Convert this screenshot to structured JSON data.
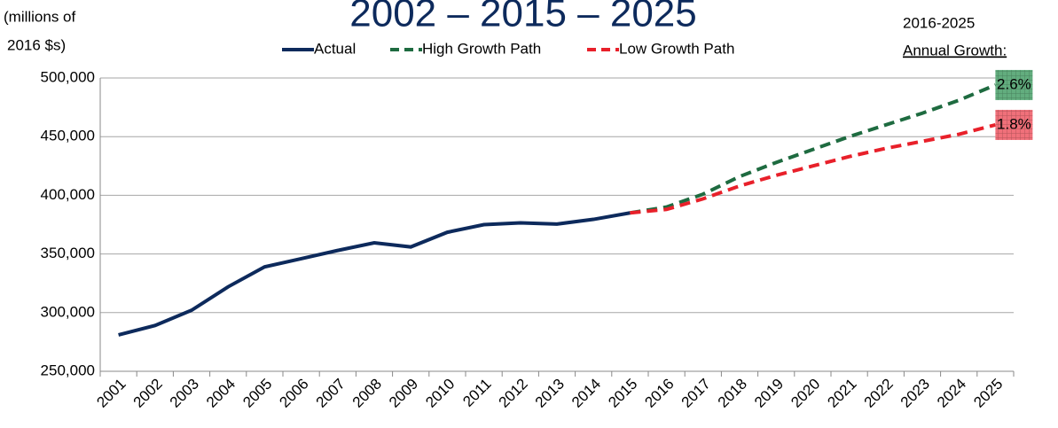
{
  "chart_data": {
    "type": "line",
    "title": "2002 – 2015 – 2025",
    "ylabel": [
      "(millions of",
      "2016 $s)"
    ],
    "annotation": [
      "2016-2025",
      "Annual Growth:"
    ],
    "categories": [
      "2001",
      "2002",
      "2003",
      "2004",
      "2005",
      "2006",
      "2007",
      "2008",
      "2009",
      "2010",
      "2011",
      "2012",
      "2013",
      "2014",
      "2015",
      "2016",
      "2017",
      "2018",
      "2019",
      "2020",
      "2021",
      "2022",
      "2023",
      "2024",
      "2025"
    ],
    "ylim": [
      250000,
      500000
    ],
    "yticks": [
      {
        "value": 250000,
        "label": "250,000"
      },
      {
        "value": 300000,
        "label": "300,000"
      },
      {
        "value": 350000,
        "label": "350,000"
      },
      {
        "value": 400000,
        "label": "400,000"
      },
      {
        "value": 450000,
        "label": "450,000"
      },
      {
        "value": 500000,
        "label": "500,000"
      }
    ],
    "grid": true,
    "series": [
      {
        "name": "Actual",
        "color": "#0d2a5c",
        "dash": false,
        "values": [
          281000,
          289000,
          302000,
          322000,
          339000,
          346000,
          353000,
          359500,
          356000,
          368500,
          375000,
          376500,
          375500,
          379500,
          385000,
          null,
          null,
          null,
          null,
          null,
          null,
          null,
          null,
          null,
          null
        ]
      },
      {
        "name": "High Growth Path",
        "color": "#1e6b40",
        "dash": true,
        "growth": "2.6%",
        "growth_color": "#62ad7e",
        "values": [
          null,
          null,
          null,
          null,
          null,
          null,
          null,
          null,
          null,
          null,
          null,
          null,
          null,
          null,
          385000,
          390000,
          401000,
          416000,
          428000,
          439000,
          450000,
          460000,
          470000,
          481000,
          494000
        ]
      },
      {
        "name": "Low Growth Path",
        "color": "#e8202a",
        "dash": true,
        "growth": "1.8%",
        "growth_color": "#f0707a",
        "values": [
          null,
          null,
          null,
          null,
          null,
          null,
          null,
          null,
          null,
          null,
          null,
          null,
          null,
          null,
          385000,
          388000,
          397000,
          408000,
          417000,
          425000,
          433000,
          440000,
          446000,
          452000,
          460000
        ]
      }
    ]
  }
}
